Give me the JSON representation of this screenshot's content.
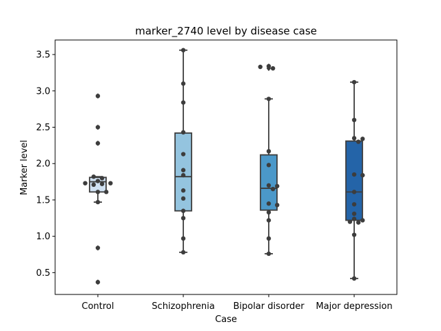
{
  "chart_data": {
    "type": "box",
    "title": "marker_2740 level by disease case",
    "xlabel": "Case",
    "ylabel": "Marker level",
    "ylim": [
      0.2,
      3.7
    ],
    "yticks": [
      0.5,
      1.0,
      1.5,
      2.0,
      2.5,
      3.0,
      3.5
    ],
    "ytick_labels": [
      "0.5",
      "1.0",
      "1.5",
      "2.0",
      "2.5",
      "3.0",
      "3.5"
    ],
    "grid": false,
    "categories": [
      "Control",
      "Schizophrenia",
      "Bipolar disorder",
      "Major depression"
    ],
    "colors": [
      "#d0e1f2",
      "#94c4df",
      "#4b98c9",
      "#2464a8"
    ],
    "edge_color": "#3d3d3d",
    "point_color": "#3d3d3d",
    "boxes": [
      {
        "q1": 1.61,
        "median": 1.75,
        "q3": 1.81,
        "whisker_low": 1.47,
        "whisker_high": 1.82,
        "outliers": [
          2.93,
          2.5,
          2.28,
          0.84,
          0.37
        ]
      },
      {
        "q1": 1.35,
        "median": 1.82,
        "q3": 2.42,
        "whisker_low": 0.78,
        "whisker_high": 3.56,
        "outliers": []
      },
      {
        "q1": 1.36,
        "median": 1.66,
        "q3": 2.12,
        "whisker_low": 0.76,
        "whisker_high": 2.89,
        "outliers": [
          3.34,
          3.31,
          3.33
        ]
      },
      {
        "q1": 1.22,
        "median": 1.61,
        "q3": 2.31,
        "whisker_low": 0.42,
        "whisker_high": 3.12,
        "outliers": []
      }
    ],
    "points": [
      [
        1.76,
        1.72,
        1.71,
        1.8,
        1.82,
        1.73,
        1.73,
        1.61,
        1.61,
        1.47,
        2.93,
        2.5,
        2.28,
        0.84,
        0.37
      ],
      [
        3.56,
        3.1,
        2.84,
        2.43,
        2.13,
        1.91,
        1.84,
        1.63,
        1.52,
        1.35,
        1.25,
        0.97,
        0.78
      ],
      [
        3.34,
        3.31,
        3.33,
        2.89,
        2.17,
        1.98,
        1.7,
        1.69,
        1.65,
        1.45,
        1.43,
        1.33,
        1.22,
        0.97,
        0.76
      ],
      [
        3.12,
        2.6,
        2.35,
        2.34,
        2.3,
        1.85,
        1.84,
        1.61,
        1.44,
        1.31,
        1.24,
        1.22,
        1.2,
        1.19,
        1.02,
        0.42
      ]
    ]
  }
}
